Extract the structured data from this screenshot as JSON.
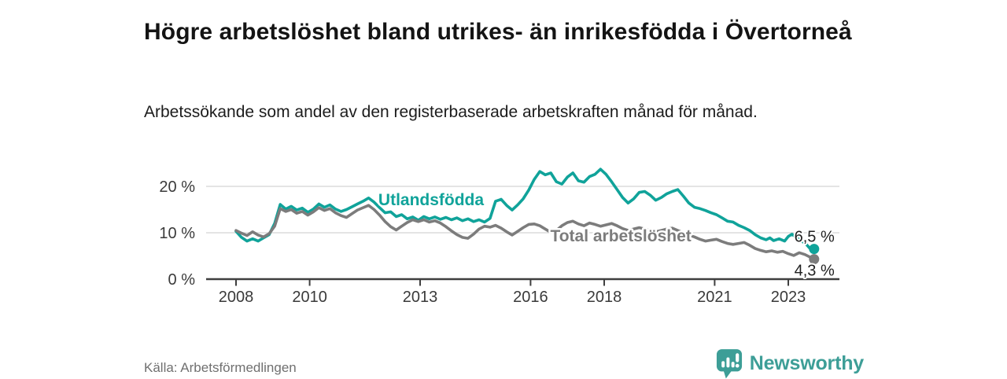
{
  "header": {
    "title": "Högre arbetslöshet bland utrikes- än inrikesfödda i Övertorneå",
    "subtitle": "Arbetssökande som andel av den registerbaserade arbetskraften månad för månad."
  },
  "footer": {
    "source": "Källa: Arbetsförmedlingen",
    "brand": "Newsworthy",
    "brand_color": "#3d9e97",
    "logo_icon": "bar-chart-speech-bubble-icon"
  },
  "chart_data": {
    "type": "line",
    "title": "Arbetssökande som andel av den registerbaserade arbetskraften månad för månad",
    "y_unit": "%",
    "x_unit": "decimal year (monthly data)",
    "x_range": [
      2008.0,
      2023.7
    ],
    "y_axis_max": 25,
    "grid": "horizontal only",
    "grid_color": "#dcdcdc",
    "axis_color": "#3f3f3f",
    "tick_label_color": "#3a3a3a",
    "end_label_color": "#1f1f1f",
    "x_ticks": [
      2008,
      2010,
      2013,
      2016,
      2018,
      2021,
      2023
    ],
    "y_ticks": [
      {
        "value": 0,
        "label": "0 %"
      },
      {
        "value": 10,
        "label": "10 %"
      },
      {
        "value": 20,
        "label": "20 %"
      }
    ],
    "series": [
      {
        "name": "Utlandsfödda",
        "color": "#10a39a",
        "end_label": "6,5 %",
        "end_value": 6.5,
        "end_label_side": "above",
        "label_at": [
          2013.3,
          15.9
        ],
        "points": [
          [
            2008.0,
            10.3
          ],
          [
            2008.15,
            9.0
          ],
          [
            2008.3,
            8.2
          ],
          [
            2008.45,
            8.7
          ],
          [
            2008.6,
            8.2
          ],
          [
            2008.75,
            8.9
          ],
          [
            2008.9,
            9.6
          ],
          [
            2009.05,
            12.0
          ],
          [
            2009.2,
            16.1
          ],
          [
            2009.35,
            15.1
          ],
          [
            2009.5,
            15.7
          ],
          [
            2009.65,
            14.9
          ],
          [
            2009.8,
            15.3
          ],
          [
            2009.95,
            14.4
          ],
          [
            2010.1,
            15.1
          ],
          [
            2010.25,
            16.2
          ],
          [
            2010.4,
            15.5
          ],
          [
            2010.55,
            16.0
          ],
          [
            2010.7,
            15.1
          ],
          [
            2010.85,
            14.6
          ],
          [
            2011.0,
            15.0
          ],
          [
            2011.15,
            15.6
          ],
          [
            2011.3,
            16.2
          ],
          [
            2011.45,
            16.8
          ],
          [
            2011.6,
            17.5
          ],
          [
            2011.75,
            16.6
          ],
          [
            2011.9,
            15.4
          ],
          [
            2012.05,
            14.3
          ],
          [
            2012.2,
            14.5
          ],
          [
            2012.35,
            13.5
          ],
          [
            2012.5,
            13.9
          ],
          [
            2012.65,
            13.0
          ],
          [
            2012.8,
            13.4
          ],
          [
            2012.95,
            12.7
          ],
          [
            2013.1,
            13.5
          ],
          [
            2013.25,
            13.0
          ],
          [
            2013.4,
            13.4
          ],
          [
            2013.55,
            12.9
          ],
          [
            2013.7,
            13.3
          ],
          [
            2013.85,
            12.8
          ],
          [
            2014.0,
            13.2
          ],
          [
            2014.15,
            12.6
          ],
          [
            2014.3,
            13.0
          ],
          [
            2014.45,
            12.4
          ],
          [
            2014.6,
            12.8
          ],
          [
            2014.75,
            12.3
          ],
          [
            2014.9,
            13.1
          ],
          [
            2015.05,
            16.8
          ],
          [
            2015.2,
            17.2
          ],
          [
            2015.35,
            15.9
          ],
          [
            2015.5,
            14.9
          ],
          [
            2015.65,
            16.0
          ],
          [
            2015.8,
            17.3
          ],
          [
            2015.95,
            19.2
          ],
          [
            2016.1,
            21.5
          ],
          [
            2016.25,
            23.2
          ],
          [
            2016.4,
            22.5
          ],
          [
            2016.55,
            22.9
          ],
          [
            2016.7,
            21.0
          ],
          [
            2016.85,
            20.5
          ],
          [
            2017.0,
            22.0
          ],
          [
            2017.15,
            22.9
          ],
          [
            2017.3,
            21.2
          ],
          [
            2017.45,
            20.9
          ],
          [
            2017.6,
            22.1
          ],
          [
            2017.75,
            22.6
          ],
          [
            2017.9,
            23.7
          ],
          [
            2018.05,
            22.6
          ],
          [
            2018.2,
            21.0
          ],
          [
            2018.35,
            19.3
          ],
          [
            2018.5,
            17.6
          ],
          [
            2018.65,
            16.4
          ],
          [
            2018.8,
            17.3
          ],
          [
            2018.95,
            18.7
          ],
          [
            2019.1,
            18.9
          ],
          [
            2019.25,
            18.1
          ],
          [
            2019.4,
            17.0
          ],
          [
            2019.55,
            17.6
          ],
          [
            2019.7,
            18.4
          ],
          [
            2019.85,
            18.9
          ],
          [
            2020.0,
            19.3
          ],
          [
            2020.15,
            17.9
          ],
          [
            2020.3,
            16.4
          ],
          [
            2020.45,
            15.5
          ],
          [
            2020.6,
            15.2
          ],
          [
            2020.75,
            14.8
          ],
          [
            2020.9,
            14.3
          ],
          [
            2021.05,
            13.9
          ],
          [
            2021.2,
            13.2
          ],
          [
            2021.35,
            12.5
          ],
          [
            2021.5,
            12.3
          ],
          [
            2021.65,
            11.6
          ],
          [
            2021.8,
            11.1
          ],
          [
            2021.95,
            10.5
          ],
          [
            2022.1,
            9.6
          ],
          [
            2022.25,
            8.9
          ],
          [
            2022.4,
            8.5
          ],
          [
            2022.5,
            8.9
          ],
          [
            2022.6,
            8.3
          ],
          [
            2022.75,
            8.7
          ],
          [
            2022.9,
            8.2
          ],
          [
            2023.0,
            9.2
          ],
          [
            2023.1,
            9.7
          ],
          [
            2023.25,
            8.8
          ],
          [
            2023.4,
            8.0
          ],
          [
            2023.5,
            7.4
          ],
          [
            2023.58,
            6.7
          ],
          [
            2023.64,
            7.0
          ],
          [
            2023.7,
            6.5
          ]
        ]
      },
      {
        "name": "Total arbetslöshet",
        "color": "#7c7c7c",
        "end_label": "4,3 %",
        "end_value": 4.3,
        "end_label_side": "below",
        "label_at": [
          2018.45,
          8.1
        ],
        "points": [
          [
            2008.0,
            10.5
          ],
          [
            2008.15,
            9.9
          ],
          [
            2008.3,
            9.4
          ],
          [
            2008.45,
            10.2
          ],
          [
            2008.6,
            9.5
          ],
          [
            2008.75,
            9.1
          ],
          [
            2008.9,
            9.8
          ],
          [
            2009.05,
            11.4
          ],
          [
            2009.2,
            15.2
          ],
          [
            2009.35,
            14.6
          ],
          [
            2009.5,
            15.0
          ],
          [
            2009.65,
            14.2
          ],
          [
            2009.8,
            14.6
          ],
          [
            2009.95,
            13.8
          ],
          [
            2010.1,
            14.5
          ],
          [
            2010.25,
            15.4
          ],
          [
            2010.4,
            14.8
          ],
          [
            2010.55,
            15.2
          ],
          [
            2010.7,
            14.3
          ],
          [
            2010.85,
            13.7
          ],
          [
            2011.0,
            13.3
          ],
          [
            2011.15,
            14.1
          ],
          [
            2011.3,
            14.9
          ],
          [
            2011.45,
            15.4
          ],
          [
            2011.6,
            15.9
          ],
          [
            2011.75,
            15.0
          ],
          [
            2011.9,
            13.8
          ],
          [
            2012.05,
            12.4
          ],
          [
            2012.2,
            11.3
          ],
          [
            2012.35,
            10.6
          ],
          [
            2012.5,
            11.4
          ],
          [
            2012.65,
            12.2
          ],
          [
            2012.8,
            12.8
          ],
          [
            2012.95,
            12.4
          ],
          [
            2013.1,
            12.8
          ],
          [
            2013.25,
            12.3
          ],
          [
            2013.4,
            12.6
          ],
          [
            2013.55,
            12.1
          ],
          [
            2013.7,
            11.3
          ],
          [
            2013.85,
            10.4
          ],
          [
            2014.0,
            9.6
          ],
          [
            2014.15,
            9.0
          ],
          [
            2014.3,
            8.8
          ],
          [
            2014.45,
            9.7
          ],
          [
            2014.6,
            10.8
          ],
          [
            2014.75,
            11.4
          ],
          [
            2014.9,
            11.2
          ],
          [
            2015.05,
            11.6
          ],
          [
            2015.2,
            11.0
          ],
          [
            2015.35,
            10.2
          ],
          [
            2015.5,
            9.5
          ],
          [
            2015.65,
            10.3
          ],
          [
            2015.8,
            11.1
          ],
          [
            2015.95,
            11.8
          ],
          [
            2016.1,
            11.9
          ],
          [
            2016.25,
            11.5
          ],
          [
            2016.4,
            10.8
          ],
          [
            2016.55,
            10.1
          ],
          [
            2016.7,
            10.5
          ],
          [
            2016.85,
            11.5
          ],
          [
            2017.0,
            12.2
          ],
          [
            2017.15,
            12.5
          ],
          [
            2017.3,
            11.9
          ],
          [
            2017.45,
            11.5
          ],
          [
            2017.6,
            12.1
          ],
          [
            2017.75,
            11.8
          ],
          [
            2017.9,
            11.4
          ],
          [
            2018.05,
            11.7
          ],
          [
            2018.2,
            12.0
          ],
          [
            2018.35,
            11.5
          ],
          [
            2018.5,
            10.9
          ],
          [
            2018.65,
            10.5
          ],
          [
            2018.8,
            10.8
          ],
          [
            2018.95,
            11.1
          ],
          [
            2019.1,
            10.8
          ],
          [
            2019.25,
            10.5
          ],
          [
            2019.4,
            10.2
          ],
          [
            2019.55,
            10.5
          ],
          [
            2019.7,
            10.8
          ],
          [
            2019.85,
            11.0
          ],
          [
            2020.0,
            10.5
          ],
          [
            2020.15,
            10.0
          ],
          [
            2020.3,
            9.5
          ],
          [
            2020.45,
            9.1
          ],
          [
            2020.6,
            8.6
          ],
          [
            2020.75,
            8.2
          ],
          [
            2020.9,
            8.4
          ],
          [
            2021.05,
            8.6
          ],
          [
            2021.2,
            8.1
          ],
          [
            2021.35,
            7.7
          ],
          [
            2021.5,
            7.5
          ],
          [
            2021.65,
            7.7
          ],
          [
            2021.8,
            7.9
          ],
          [
            2021.95,
            7.3
          ],
          [
            2022.1,
            6.6
          ],
          [
            2022.25,
            6.2
          ],
          [
            2022.4,
            5.9
          ],
          [
            2022.55,
            6.1
          ],
          [
            2022.7,
            5.8
          ],
          [
            2022.85,
            6.0
          ],
          [
            2023.0,
            5.5
          ],
          [
            2023.15,
            5.1
          ],
          [
            2023.3,
            5.7
          ],
          [
            2023.45,
            5.3
          ],
          [
            2023.58,
            4.8
          ],
          [
            2023.7,
            4.3
          ]
        ]
      }
    ]
  }
}
